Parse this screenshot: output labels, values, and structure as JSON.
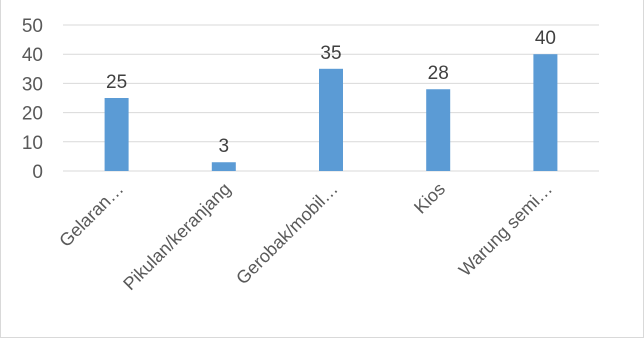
{
  "chart_data": {
    "type": "bar",
    "title": "",
    "xlabel": "",
    "ylabel": "",
    "categories": [
      "Gelaran…",
      "Pikulan/keranjang",
      "Gerobak/mobil…",
      "Kios",
      "Warung semi…"
    ],
    "values": [
      25,
      3,
      35,
      28,
      40
    ],
    "data_labels": [
      "25",
      "3",
      "35",
      "28",
      "40"
    ],
    "ylim": [
      0,
      50
    ],
    "yticks": [
      0,
      10,
      20,
      30,
      40,
      50
    ],
    "ytick_labels": [
      "0",
      "10",
      "20",
      "30",
      "40",
      "50"
    ],
    "grid": true,
    "legend": "none",
    "bar_color": "#5b9bd5",
    "grid_color": "#d9d9d9"
  }
}
